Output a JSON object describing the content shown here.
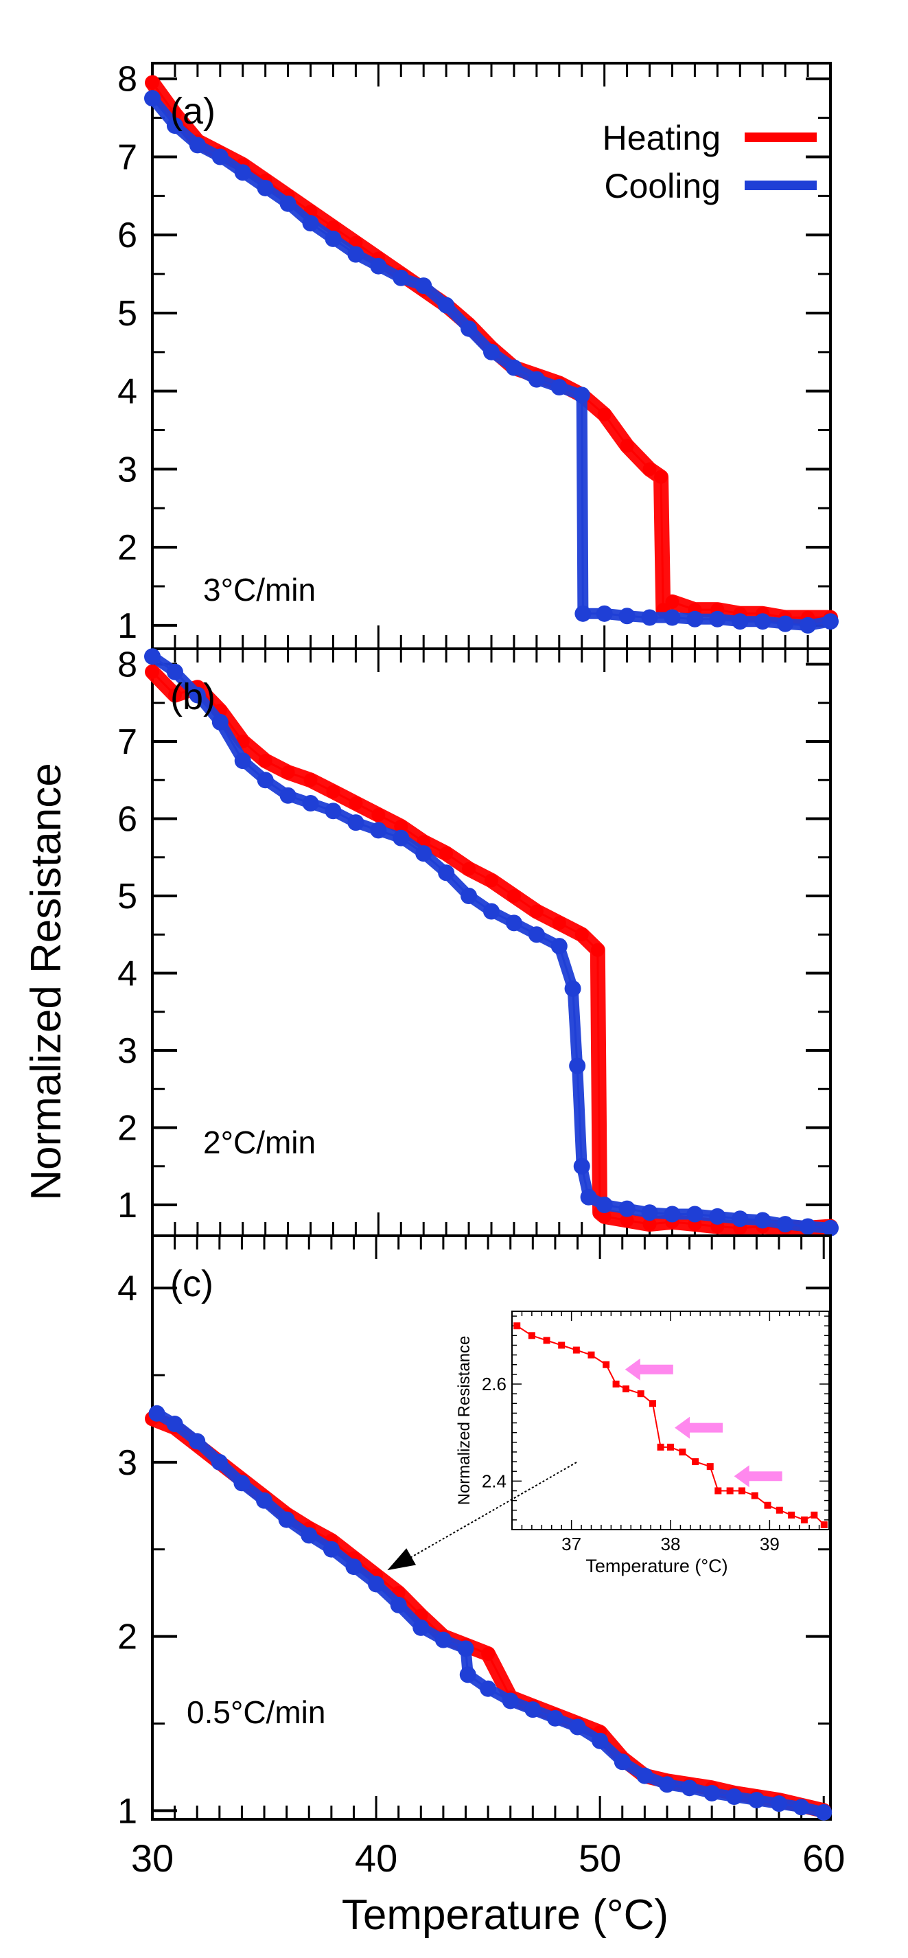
{
  "figure": {
    "x_axis_label": "Temperature (°C)",
    "y_axis_label": "Normalized Resistance",
    "x_ticks": [
      "30",
      "40",
      "50",
      "60"
    ]
  },
  "colors": {
    "heating": "#ff0000",
    "cooling": "#1f3fd6",
    "inset_series": "#ff0000",
    "inset_arrows": "#ff88ee",
    "axis": "#000000"
  },
  "chart_data": [
    {
      "type": "scatter",
      "panel_label": "(a)",
      "rate_label": "3°C/min",
      "xlim": [
        30,
        60
      ],
      "ylim": [
        0.7,
        8.2
      ],
      "y_ticks": [
        "1",
        "2",
        "3",
        "4",
        "5",
        "6",
        "7",
        "8"
      ],
      "y_tick_values": [
        1,
        2,
        3,
        4,
        5,
        6,
        7,
        8
      ],
      "legend": {
        "placement": "top-right",
        "entries": [
          "Heating",
          "Cooling"
        ]
      },
      "series": [
        {
          "name": "Heating",
          "color_key": "heating",
          "points": [
            [
              30,
              7.95
            ],
            [
              31,
              7.55
            ],
            [
              32,
              7.2
            ],
            [
              33,
              7.05
            ],
            [
              34,
              6.9
            ],
            [
              35,
              6.7
            ],
            [
              36,
              6.5
            ],
            [
              37,
              6.3
            ],
            [
              38,
              6.1
            ],
            [
              39,
              5.9
            ],
            [
              40,
              5.7
            ],
            [
              41,
              5.5
            ],
            [
              42,
              5.3
            ],
            [
              43,
              5.1
            ],
            [
              44,
              4.85
            ],
            [
              45,
              4.55
            ],
            [
              46,
              4.3
            ],
            [
              47,
              4.2
            ],
            [
              48,
              4.1
            ],
            [
              49,
              3.95
            ],
            [
              50,
              3.7
            ],
            [
              51,
              3.3
            ],
            [
              52,
              3.0
            ],
            [
              52.5,
              2.9
            ],
            [
              52.6,
              1.2
            ],
            [
              53,
              1.3
            ],
            [
              54,
              1.2
            ],
            [
              55,
              1.2
            ],
            [
              56,
              1.15
            ],
            [
              57,
              1.15
            ],
            [
              58,
              1.1
            ],
            [
              59,
              1.1
            ],
            [
              60,
              1.1
            ]
          ]
        },
        {
          "name": "Cooling",
          "color_key": "cooling",
          "points": [
            [
              30,
              7.75
            ],
            [
              31,
              7.4
            ],
            [
              32,
              7.15
            ],
            [
              33,
              7.0
            ],
            [
              34,
              6.8
            ],
            [
              35,
              6.6
            ],
            [
              36,
              6.4
            ],
            [
              37,
              6.15
            ],
            [
              38,
              5.95
            ],
            [
              39,
              5.75
            ],
            [
              40,
              5.6
            ],
            [
              41,
              5.45
            ],
            [
              42,
              5.35
            ],
            [
              43,
              5.1
            ],
            [
              44,
              4.8
            ],
            [
              45,
              4.5
            ],
            [
              46,
              4.3
            ],
            [
              47,
              4.15
            ],
            [
              48,
              4.05
            ],
            [
              49,
              3.95
            ],
            [
              49.05,
              1.15
            ],
            [
              50,
              1.15
            ],
            [
              51,
              1.12
            ],
            [
              52,
              1.1
            ],
            [
              53,
              1.1
            ],
            [
              54,
              1.08
            ],
            [
              55,
              1.08
            ],
            [
              56,
              1.05
            ],
            [
              57,
              1.05
            ],
            [
              58,
              1.02
            ],
            [
              59,
              1.0
            ],
            [
              60,
              1.05
            ]
          ]
        }
      ]
    },
    {
      "type": "scatter",
      "panel_label": "(b)",
      "rate_label": "2°C/min",
      "xlim": [
        30,
        60
      ],
      "ylim": [
        0.6,
        8.2
      ],
      "y_ticks": [
        "1",
        "2",
        "3",
        "4",
        "5",
        "6",
        "7",
        "8"
      ],
      "y_tick_values": [
        1,
        2,
        3,
        4,
        5,
        6,
        7,
        8
      ],
      "series": [
        {
          "name": "Heating",
          "color_key": "heating",
          "points": [
            [
              30,
              7.9
            ],
            [
              31,
              7.6
            ],
            [
              32,
              7.7
            ],
            [
              33,
              7.4
            ],
            [
              34,
              7.0
            ],
            [
              35,
              6.75
            ],
            [
              36,
              6.6
            ],
            [
              37,
              6.5
            ],
            [
              38,
              6.35
            ],
            [
              39,
              6.2
            ],
            [
              40,
              6.05
            ],
            [
              41,
              5.9
            ],
            [
              42,
              5.7
            ],
            [
              43,
              5.55
            ],
            [
              44,
              5.35
            ],
            [
              45,
              5.2
            ],
            [
              46,
              5.0
            ],
            [
              47,
              4.8
            ],
            [
              48,
              4.65
            ],
            [
              49,
              4.5
            ],
            [
              49.7,
              4.3
            ],
            [
              49.8,
              0.9
            ],
            [
              50,
              0.85
            ],
            [
              51,
              0.8
            ],
            [
              52,
              0.75
            ],
            [
              53,
              0.78
            ],
            [
              54,
              0.75
            ],
            [
              55,
              0.72
            ],
            [
              56,
              0.7
            ],
            [
              57,
              0.72
            ],
            [
              58,
              0.7
            ],
            [
              59,
              0.7
            ],
            [
              60,
              0.72
            ]
          ]
        },
        {
          "name": "Cooling",
          "color_key": "cooling",
          "points": [
            [
              30,
              8.1
            ],
            [
              31,
              7.9
            ],
            [
              32,
              7.6
            ],
            [
              33,
              7.25
            ],
            [
              34,
              6.75
            ],
            [
              35,
              6.5
            ],
            [
              36,
              6.3
            ],
            [
              37,
              6.2
            ],
            [
              38,
              6.1
            ],
            [
              39,
              5.95
            ],
            [
              40,
              5.85
            ],
            [
              41,
              5.75
            ],
            [
              42,
              5.55
            ],
            [
              43,
              5.3
            ],
            [
              44,
              5.0
            ],
            [
              45,
              4.8
            ],
            [
              46,
              4.65
            ],
            [
              47,
              4.5
            ],
            [
              48,
              4.35
            ],
            [
              48.6,
              3.8
            ],
            [
              48.8,
              2.8
            ],
            [
              49,
              1.5
            ],
            [
              49.3,
              1.1
            ],
            [
              50,
              1.0
            ],
            [
              51,
              0.95
            ],
            [
              52,
              0.9
            ],
            [
              53,
              0.88
            ],
            [
              54,
              0.88
            ],
            [
              55,
              0.85
            ],
            [
              56,
              0.82
            ],
            [
              57,
              0.8
            ],
            [
              58,
              0.75
            ],
            [
              59,
              0.72
            ],
            [
              60,
              0.7
            ]
          ]
        }
      ]
    },
    {
      "type": "scatter",
      "panel_label": "(c)",
      "rate_label": "0.5°C/min",
      "xlim": [
        30,
        60.3
      ],
      "ylim": [
        0.95,
        4.3
      ],
      "y_ticks": [
        "1",
        "2",
        "3",
        "4"
      ],
      "y_tick_values": [
        1,
        2,
        3,
        4
      ],
      "series": [
        {
          "name": "Heating",
          "color_key": "heating",
          "points": [
            [
              30,
              3.25
            ],
            [
              31,
              3.2
            ],
            [
              32,
              3.1
            ],
            [
              33,
              3.0
            ],
            [
              34,
              2.9
            ],
            [
              35,
              2.8
            ],
            [
              36,
              2.7
            ],
            [
              37,
              2.62
            ],
            [
              38,
              2.55
            ],
            [
              39,
              2.45
            ],
            [
              40,
              2.35
            ],
            [
              41,
              2.25
            ],
            [
              42,
              2.12
            ],
            [
              43,
              2.0
            ],
            [
              44,
              1.95
            ],
            [
              45,
              1.9
            ],
            [
              46,
              1.65
            ],
            [
              47,
              1.6
            ],
            [
              48,
              1.55
            ],
            [
              49,
              1.5
            ],
            [
              50,
              1.45
            ],
            [
              51,
              1.3
            ],
            [
              52,
              1.2
            ],
            [
              53,
              1.17
            ],
            [
              54,
              1.15
            ],
            [
              55,
              1.13
            ],
            [
              56,
              1.1
            ],
            [
              57,
              1.08
            ],
            [
              58,
              1.06
            ],
            [
              59,
              1.03
            ],
            [
              60,
              1.0
            ]
          ]
        },
        {
          "name": "Cooling",
          "color_key": "cooling",
          "points": [
            [
              30.2,
              3.28
            ],
            [
              31,
              3.22
            ],
            [
              32,
              3.12
            ],
            [
              33,
              3.0
            ],
            [
              34,
              2.88
            ],
            [
              35,
              2.78
            ],
            [
              36,
              2.67
            ],
            [
              37,
              2.58
            ],
            [
              38,
              2.5
            ],
            [
              39,
              2.4
            ],
            [
              40,
              2.3
            ],
            [
              41,
              2.18
            ],
            [
              42,
              2.05
            ],
            [
              43,
              1.98
            ],
            [
              44,
              1.93
            ],
            [
              44.1,
              1.78
            ],
            [
              45,
              1.7
            ],
            [
              46,
              1.63
            ],
            [
              47,
              1.58
            ],
            [
              48,
              1.53
            ],
            [
              49,
              1.48
            ],
            [
              50,
              1.4
            ],
            [
              51,
              1.28
            ],
            [
              52,
              1.2
            ],
            [
              53,
              1.15
            ],
            [
              54,
              1.13
            ],
            [
              55,
              1.1
            ],
            [
              56,
              1.08
            ],
            [
              57,
              1.06
            ],
            [
              58,
              1.04
            ],
            [
              59,
              1.02
            ],
            [
              60,
              0.99
            ]
          ]
        }
      ],
      "inset": {
        "type": "line",
        "xlabel": "Temperature (°C)",
        "ylabel": "Normalized Resistance",
        "xlim": [
          36.4,
          39.6
        ],
        "ylim": [
          2.3,
          2.75
        ],
        "x_ticks": [
          "37",
          "38",
          "39"
        ],
        "x_tick_values": [
          37,
          38,
          39
        ],
        "y_ticks": [
          "2.4",
          "2.6"
        ],
        "y_tick_values": [
          2.4,
          2.6
        ],
        "points": [
          [
            36.45,
            2.72
          ],
          [
            36.6,
            2.7
          ],
          [
            36.75,
            2.69
          ],
          [
            36.9,
            2.68
          ],
          [
            37.05,
            2.67
          ],
          [
            37.2,
            2.66
          ],
          [
            37.35,
            2.64
          ],
          [
            37.45,
            2.6
          ],
          [
            37.55,
            2.59
          ],
          [
            37.7,
            2.58
          ],
          [
            37.82,
            2.56
          ],
          [
            37.9,
            2.47
          ],
          [
            38.0,
            2.47
          ],
          [
            38.12,
            2.46
          ],
          [
            38.25,
            2.44
          ],
          [
            38.4,
            2.43
          ],
          [
            38.48,
            2.38
          ],
          [
            38.6,
            2.38
          ],
          [
            38.72,
            2.38
          ],
          [
            38.85,
            2.37
          ],
          [
            38.98,
            2.35
          ],
          [
            39.1,
            2.34
          ],
          [
            39.22,
            2.33
          ],
          [
            39.35,
            2.32
          ],
          [
            39.45,
            2.33
          ],
          [
            39.55,
            2.31
          ]
        ],
        "step_arrows_at": [
          [
            37.5,
            2.63
          ],
          [
            38.0,
            2.51
          ],
          [
            38.6,
            2.41
          ]
        ]
      }
    }
  ]
}
